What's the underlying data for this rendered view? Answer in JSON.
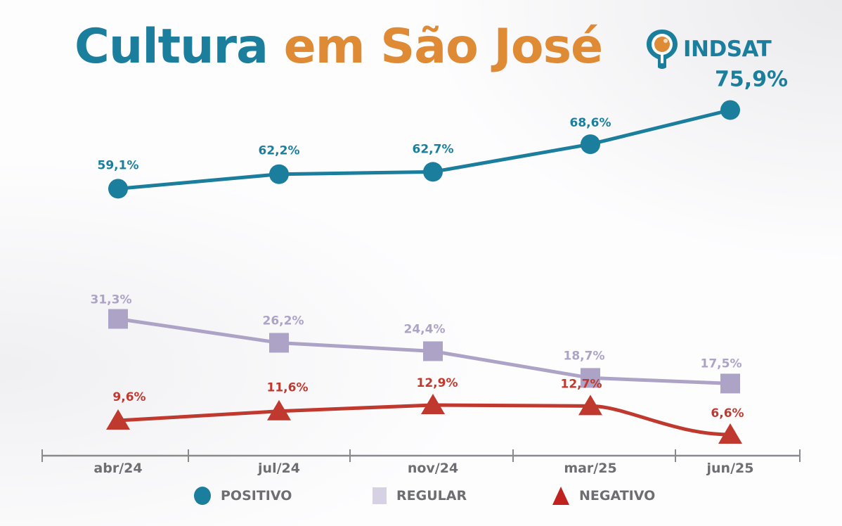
{
  "title": {
    "part1": "Cultura",
    "part2": "em São José",
    "color1": "#1b7e9c",
    "color2": "#df8a35"
  },
  "logo": {
    "icon": "map-pin-icon",
    "text": "INDSAT"
  },
  "chart_data": {
    "type": "line",
    "title": "Cultura em São José",
    "xlabel": "",
    "ylabel": "",
    "categories": [
      "abr/24",
      "jul/24",
      "nov/24",
      "mar/25",
      "jun/25"
    ],
    "ylim": [
      0,
      80
    ],
    "grid": false,
    "legend_position": "bottom",
    "series": [
      {
        "name": "POSITIVO",
        "marker": "circle",
        "color": "#1b7e9c",
        "values": [
          59.1,
          62.2,
          62.7,
          68.6,
          75.9
        ],
        "labels": [
          "59,1%",
          "62,2%",
          "62,7%",
          "68,6%",
          "75,9%"
        ]
      },
      {
        "name": "REGULAR",
        "marker": "square",
        "color": "#ada3c6",
        "values": [
          31.3,
          26.2,
          24.4,
          18.7,
          17.5
        ],
        "labels": [
          "31,3%",
          "26,2%",
          "24,4%",
          "18,7%",
          "17,5%"
        ]
      },
      {
        "name": "NEGATIVO",
        "marker": "triangle",
        "color": "#c0392e",
        "values": [
          9.6,
          11.6,
          12.9,
          12.7,
          6.6
        ],
        "labels": [
          "9,6%",
          "11,6%",
          "12,9%",
          "12,7%",
          "6,6%"
        ]
      }
    ]
  },
  "legend": [
    {
      "label": "POSITIVO",
      "icon": "circle-marker-icon",
      "color": "#1b7e9c"
    },
    {
      "label": "REGULAR",
      "icon": "square-marker-icon",
      "color": "#d6d2e3"
    },
    {
      "label": "NEGATIVO",
      "icon": "triangle-marker-icon",
      "color": "#c0221f"
    }
  ]
}
